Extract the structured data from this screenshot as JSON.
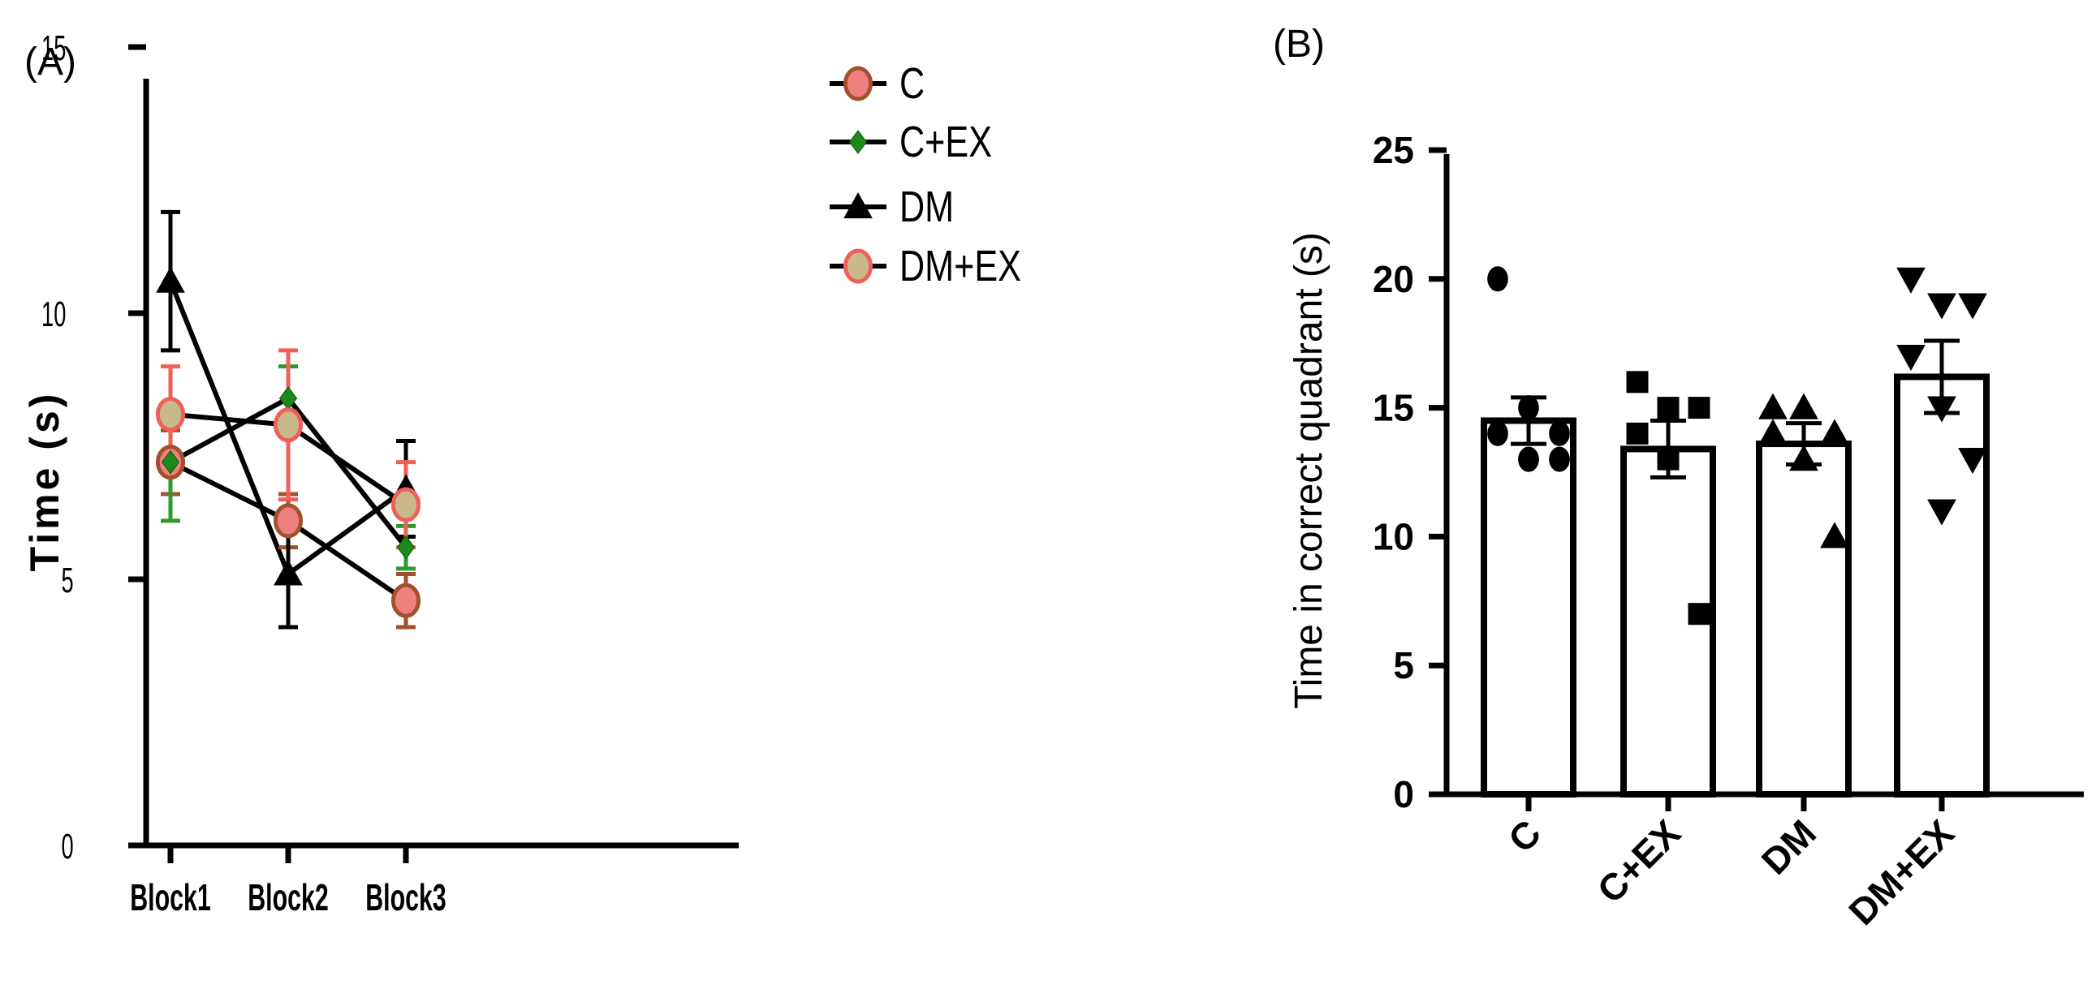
{
  "chart_data": [
    {
      "panel": "(A)",
      "type": "line",
      "xlabel": "",
      "ylabel": "Time (s)",
      "categories": [
        "Block1",
        "Block2",
        "Block3"
      ],
      "ylim": [
        0,
        15
      ],
      "yticks": [
        "0",
        "5",
        "10",
        "15"
      ],
      "series": [
        {
          "name": "C",
          "marker": "circle",
          "fill": "#f08080",
          "edge": "#a0522d",
          "values": [
            7.2,
            6.1,
            4.6
          ],
          "errors": [
            0.6,
            0.5,
            0.5
          ],
          "err_color": "#a0522d"
        },
        {
          "name": "C+EX",
          "marker": "diamond",
          "fill": "#1a8a1a",
          "edge": "#0a5a0a",
          "values": [
            7.2,
            8.4,
            5.6
          ],
          "errors": [
            1.1,
            0.6,
            0.4
          ],
          "err_color": "#2e9a2e"
        },
        {
          "name": "DM",
          "marker": "triangle",
          "fill": "#000000",
          "edge": "#000000",
          "values": [
            10.6,
            5.1,
            6.7
          ],
          "errors": [
            1.3,
            1.0,
            0.9
          ],
          "err_color": "#000000"
        },
        {
          "name": "DM+EX",
          "marker": "circle",
          "fill": "#c8b88a",
          "edge": "#f0605a",
          "values": [
            8.1,
            7.9,
            6.4
          ],
          "errors": [
            0.9,
            1.4,
            0.8
          ],
          "err_color": "#f0605a"
        }
      ]
    },
    {
      "panel": "(B)",
      "type": "bar",
      "xlabel": "",
      "ylabel": "Time in correct quadrant (s)",
      "categories": [
        "C",
        "C+EX",
        "DM",
        "DM+EX"
      ],
      "values": [
        14.5,
        13.4,
        13.6,
        16.2
      ],
      "errors": [
        0.9,
        1.1,
        0.8,
        1.4
      ],
      "markers": [
        "circle",
        "square",
        "triangle",
        "triangle-down"
      ],
      "points": [
        [
          20,
          15,
          14,
          14,
          13,
          13,
          13
        ],
        [
          16,
          15,
          15,
          14,
          13,
          7
        ],
        [
          15,
          15,
          14,
          14,
          13,
          10
        ],
        [
          20,
          19,
          19,
          17,
          15,
          13,
          11
        ]
      ],
      "ylim": [
        0,
        25
      ],
      "yticks": [
        "0",
        "5",
        "10",
        "15",
        "20",
        "25"
      ]
    }
  ]
}
